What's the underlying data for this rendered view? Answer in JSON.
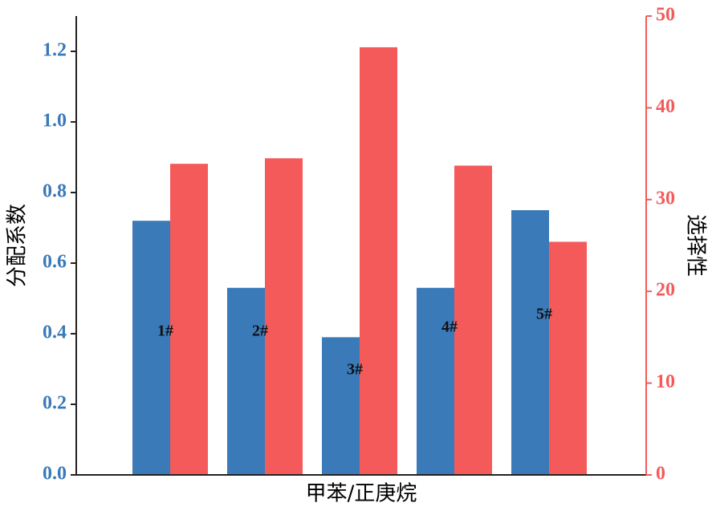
{
  "chart_data": {
    "type": "bar",
    "xlabel": "甲苯/正庚烷",
    "ylabel": "分配系数",
    "y2label": "选择性",
    "categories": [
      "1#",
      "2#",
      "3#",
      "4#",
      "5#"
    ],
    "series": [
      {
        "color": "#3a7ab8",
        "values": [
          0.72,
          0.53,
          0.39,
          0.53,
          0.75
        ]
      },
      {
        "color": "#f55a5a",
        "axis": "y2",
        "values": [
          33.9,
          34.5,
          46.6,
          33.7,
          25.4
        ]
      }
    ],
    "ylim": [
      0,
      1.3
    ],
    "yticks": [
      {
        "value": 0,
        "label": "0.0"
      },
      0.2,
      0.4,
      0.6,
      0.8,
      {
        "value": 1,
        "label": "1.0"
      },
      1.2
    ],
    "y2lim": [
      0,
      50
    ],
    "y2ticks": [
      0,
      10,
      20,
      30,
      40,
      50
    ]
  }
}
